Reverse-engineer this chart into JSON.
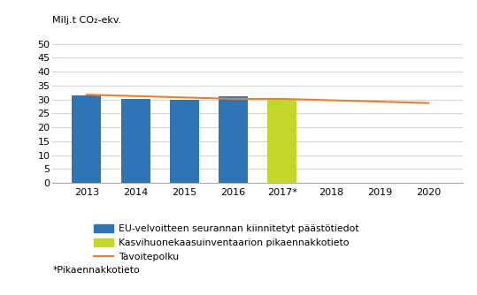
{
  "bar_years": [
    2013,
    2014,
    2015,
    2016,
    2017
  ],
  "bar_values": [
    31.5,
    30.1,
    29.9,
    31.1,
    30.1
  ],
  "bar_colors": [
    "#2E75B6",
    "#2E75B6",
    "#2E75B6",
    "#2E75B6",
    "#C5D62B"
  ],
  "target_years": [
    2013,
    2014,
    2015,
    2016,
    2017,
    2018,
    2019,
    2020
  ],
  "target_values": [
    31.7,
    31.2,
    30.7,
    30.2,
    30.2,
    29.7,
    29.2,
    28.7
  ],
  "target_color": "#ED7D31",
  "ylabel": "Milj.t CO₂-ekv.",
  "ylim": [
    0,
    53
  ],
  "yticks": [
    0,
    5,
    10,
    15,
    20,
    25,
    30,
    35,
    40,
    45,
    50
  ],
  "xlim": [
    2012.3,
    2020.7
  ],
  "xtick_positions": [
    2013,
    2014,
    2015,
    2016,
    2017,
    2018,
    2019,
    2020
  ],
  "xtick_labels": [
    "2013",
    "2014",
    "2015",
    "2016",
    "2017*",
    "2018",
    "2019",
    "2020"
  ],
  "legend_blue_label": "EU-velvoitteen seurannan kiinnitetyt päästötiedot",
  "legend_green_label": "Kasvihuonekaasuinventaarion pikaennakkotieto",
  "legend_line_label": "Tavoitepolku",
  "footnote": "*Pikaennakkotieto",
  "bar_width": 0.6,
  "background_color": "#FFFFFF",
  "grid_color": "#D3D3D3"
}
